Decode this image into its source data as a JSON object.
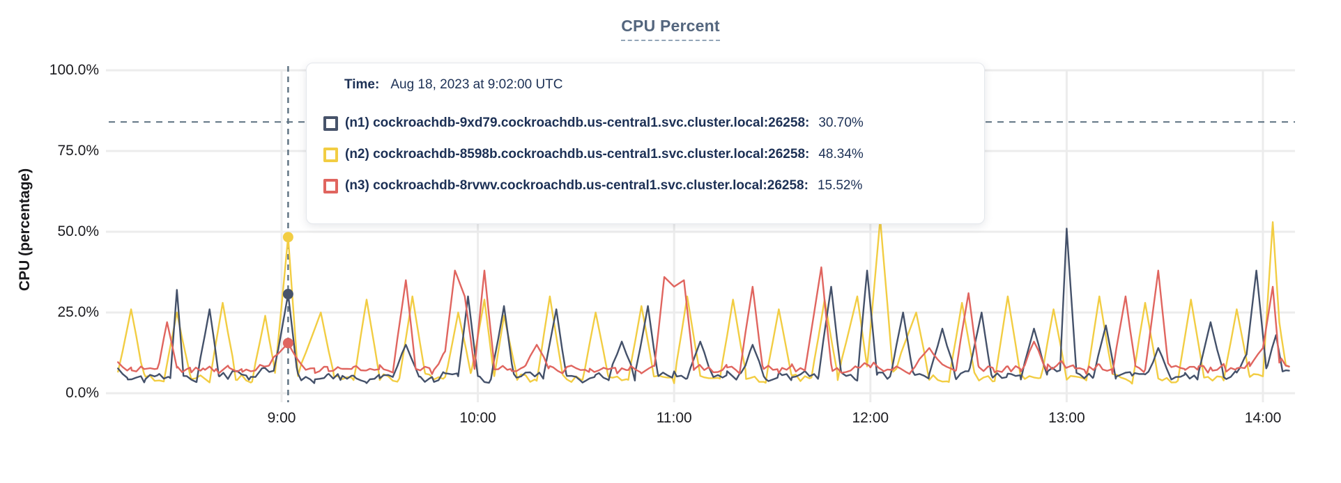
{
  "chart_data": {
    "type": "line",
    "title": "CPU Percent",
    "ylabel": "CPU (percentage)",
    "xlabel": "",
    "y_ticks": [
      {
        "label": "100.0%",
        "value": 100
      },
      {
        "label": "75.0%",
        "value": 75
      },
      {
        "label": "50.0%",
        "value": 50
      },
      {
        "label": "25.0%",
        "value": 25
      },
      {
        "label": "0.0%",
        "value": 0
      }
    ],
    "x_ticks": [
      {
        "label": "9:00",
        "t": 50
      },
      {
        "label": "10:00",
        "t": 110
      },
      {
        "label": "11:00",
        "t": 170
      },
      {
        "label": "12:00",
        "t": 230
      },
      {
        "label": "13:00",
        "t": 290
      },
      {
        "label": "14:00",
        "t": 350
      }
    ],
    "ylim": [
      0,
      100
    ],
    "x_range_minutes": [
      0,
      358
    ],
    "grid": true,
    "threshold_percent": 84,
    "legend_position": "tooltip",
    "crosshair": {
      "time_label": "Time:",
      "time_value": "Aug 18, 2023 at 9:02:00 UTC",
      "t_minutes": 52,
      "entries": [
        {
          "name": "n1",
          "label": "(n1) cockroachdb-9xd79.cockroachdb.us-central1.svc.cluster.local:26258:",
          "value": "30.70%",
          "y": 30.7,
          "color": "#47536a"
        },
        {
          "name": "n2",
          "label": "(n2) cockroachdb-8598b.cockroachdb.us-central1.svc.cluster.local:26258:",
          "value": "48.34%",
          "y": 48.34,
          "color": "#f2cd43"
        },
        {
          "name": "n3",
          "label": "(n3) cockroachdb-8rvwv.cockroachdb.us-central1.svc.cluster.local:26258:",
          "value": "15.52%",
          "y": 15.52,
          "color": "#e0655f"
        }
      ]
    },
    "series": [
      {
        "name": "n2",
        "color": "#f2cd43",
        "points": [
          0,
          6,
          4,
          26,
          8,
          5,
          14,
          4,
          18,
          25,
          22,
          5,
          28,
          4,
          32,
          28,
          36,
          5,
          41,
          4,
          45,
          24,
          48,
          6,
          52,
          48.34,
          55,
          6,
          62,
          25,
          66,
          5,
          72,
          4,
          76,
          29,
          80,
          5,
          86,
          4,
          90,
          30,
          94,
          5,
          100,
          4,
          104,
          25,
          108,
          6,
          112,
          29,
          115,
          5,
          118,
          24,
          122,
          5,
          128,
          4,
          132,
          30,
          136,
          5,
          142,
          4,
          146,
          25,
          150,
          5,
          156,
          4,
          160,
          27,
          164,
          5,
          170,
          4,
          174,
          30,
          178,
          5,
          184,
          4,
          188,
          29,
          192,
          5,
          198,
          4,
          202,
          26,
          206,
          5,
          212,
          4,
          216,
          29,
          220,
          5,
          226,
          30,
          229,
          8,
          233,
          54,
          237,
          6,
          244,
          25,
          248,
          5,
          254,
          4,
          258,
          28,
          262,
          5,
          268,
          4,
          272,
          30,
          276,
          5,
          282,
          4,
          286,
          26,
          290,
          5,
          296,
          4,
          300,
          30,
          304,
          5,
          310,
          4,
          314,
          28,
          318,
          5,
          324,
          4,
          328,
          29,
          332,
          5,
          338,
          4,
          342,
          26,
          346,
          5,
          350,
          6,
          353,
          53,
          355,
          22,
          357,
          8,
          358,
          9
        ]
      },
      {
        "name": "n1",
        "color": "#44516a",
        "points": [
          0,
          8,
          3,
          5,
          8,
          4,
          12,
          6,
          16,
          5,
          18,
          32,
          20,
          5,
          24,
          4,
          28,
          26,
          31,
          5,
          36,
          6,
          40,
          5,
          44,
          7,
          48,
          8,
          52,
          30.7,
          55,
          5,
          60,
          4,
          64,
          6,
          68,
          5,
          72,
          6,
          76,
          4,
          80,
          5,
          84,
          6,
          88,
          15,
          92,
          5,
          96,
          4,
          100,
          6,
          104,
          5,
          107,
          30,
          110,
          5,
          114,
          4,
          118,
          27,
          121,
          5,
          126,
          6,
          130,
          5,
          134,
          26,
          137,
          5,
          142,
          4,
          146,
          6,
          150,
          5,
          154,
          16,
          158,
          5,
          162,
          27,
          165,
          5,
          170,
          6,
          174,
          5,
          178,
          16,
          182,
          5,
          186,
          6,
          190,
          5,
          194,
          15,
          198,
          4,
          202,
          6,
          206,
          5,
          210,
          7,
          214,
          5,
          218,
          33,
          221,
          6,
          226,
          5,
          229,
          38,
          232,
          6,
          236,
          5,
          240,
          25,
          243,
          6,
          248,
          5,
          252,
          20,
          256,
          5,
          260,
          6,
          264,
          25,
          267,
          5,
          272,
          6,
          276,
          5,
          280,
          20,
          284,
          6,
          288,
          8,
          290,
          51,
          293,
          6,
          298,
          5,
          302,
          21,
          305,
          5,
          310,
          6,
          314,
          5,
          318,
          14,
          322,
          5,
          326,
          6,
          330,
          5,
          334,
          22,
          338,
          5,
          342,
          6,
          345,
          12,
          348,
          38,
          351,
          8,
          354,
          18,
          356,
          6,
          358,
          7
        ]
      },
      {
        "name": "n3",
        "color": "#e0655f",
        "points": [
          0,
          9,
          4,
          7,
          8,
          8,
          12,
          7,
          15,
          22,
          18,
          8,
          22,
          7,
          26,
          8,
          30,
          7,
          34,
          8,
          38,
          7,
          42,
          8,
          46,
          9,
          52,
          15.52,
          56,
          8,
          60,
          7,
          64,
          8,
          68,
          7,
          72,
          8,
          76,
          7,
          80,
          8,
          84,
          7,
          88,
          35,
          91,
          8,
          96,
          7,
          100,
          13,
          103,
          38,
          106,
          30,
          109,
          8,
          112,
          38,
          115,
          8,
          120,
          7,
          124,
          8,
          128,
          15,
          132,
          8,
          136,
          7,
          140,
          8,
          144,
          7,
          148,
          8,
          152,
          7,
          156,
          8,
          160,
          7,
          164,
          8,
          167,
          36,
          170,
          33,
          173,
          35,
          176,
          8,
          182,
          7,
          186,
          8,
          190,
          7,
          194,
          33,
          197,
          8,
          202,
          7,
          206,
          8,
          210,
          7,
          215,
          39,
          218,
          8,
          222,
          7,
          226,
          8,
          230,
          9,
          234,
          7,
          238,
          8,
          242,
          7,
          248,
          14,
          252,
          8,
          256,
          7,
          260,
          31,
          263,
          8,
          268,
          7,
          272,
          8,
          276,
          7,
          280,
          16,
          284,
          8,
          288,
          9,
          292,
          8,
          296,
          7,
          300,
          8,
          304,
          7,
          308,
          30,
          311,
          8,
          314,
          7,
          318,
          38,
          321,
          9,
          326,
          7,
          330,
          8,
          334,
          7,
          338,
          8,
          342,
          7,
          346,
          9,
          350,
          14,
          353,
          33,
          355,
          10,
          358,
          9
        ]
      }
    ],
    "render_hints": {
      "jitter_seed": 7,
      "jitter_amp": 1.1,
      "step_minutes": 1.4
    }
  },
  "colors": {
    "title": "#54667e",
    "title_underline": "#93a5b8",
    "grid": "#ececec",
    "dashed_guides": "#5c7080",
    "tick_text": "#1b1b1f",
    "tooltip_text": "#1c3055",
    "tooltip_border": "#e4e7ec"
  }
}
